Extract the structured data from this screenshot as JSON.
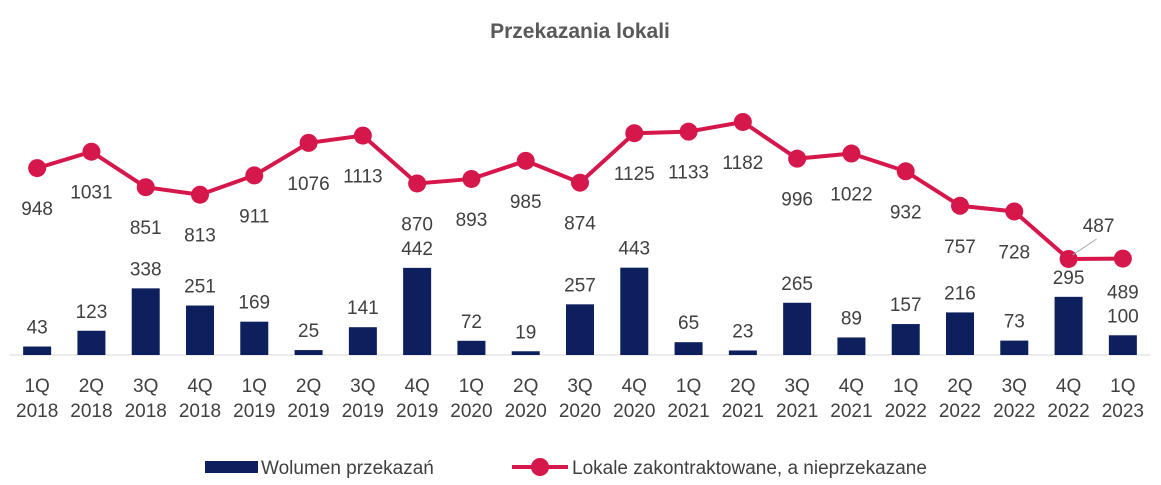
{
  "chart_data": {
    "type": "bar_line",
    "title": "Przekazania lokali",
    "categories": [
      [
        "1Q",
        "2018"
      ],
      [
        "2Q",
        "2018"
      ],
      [
        "3Q",
        "2018"
      ],
      [
        "4Q",
        "2018"
      ],
      [
        "1Q",
        "2019"
      ],
      [
        "2Q",
        "2019"
      ],
      [
        "3Q",
        "2019"
      ],
      [
        "4Q",
        "2019"
      ],
      [
        "1Q",
        "2020"
      ],
      [
        "2Q",
        "2020"
      ],
      [
        "3Q",
        "2020"
      ],
      [
        "4Q",
        "2020"
      ],
      [
        "1Q",
        "2021"
      ],
      [
        "2Q",
        "2021"
      ],
      [
        "3Q",
        "2021"
      ],
      [
        "4Q",
        "2021"
      ],
      [
        "1Q",
        "2022"
      ],
      [
        "2Q",
        "2022"
      ],
      [
        "3Q",
        "2022"
      ],
      [
        "4Q",
        "2022"
      ],
      [
        "1Q",
        "2023"
      ]
    ],
    "series": [
      {
        "name": "Wolumen przekazań",
        "type": "bar",
        "color": "#0d1f5c",
        "values": [
          43,
          123,
          338,
          251,
          169,
          25,
          141,
          442,
          72,
          19,
          257,
          443,
          65,
          23,
          265,
          89,
          157,
          216,
          73,
          295,
          100
        ]
      },
      {
        "name": "Lokale zakontraktowane, a nieprzekazane",
        "type": "line",
        "color": "#d6174b",
        "values": [
          948,
          1031,
          851,
          813,
          911,
          1076,
          1113,
          870,
          893,
          985,
          874,
          1125,
          1133,
          1182,
          996,
          1022,
          932,
          757,
          728,
          487,
          489
        ]
      }
    ],
    "ylim": [
      0,
      1400
    ],
    "legend": "bottom"
  }
}
